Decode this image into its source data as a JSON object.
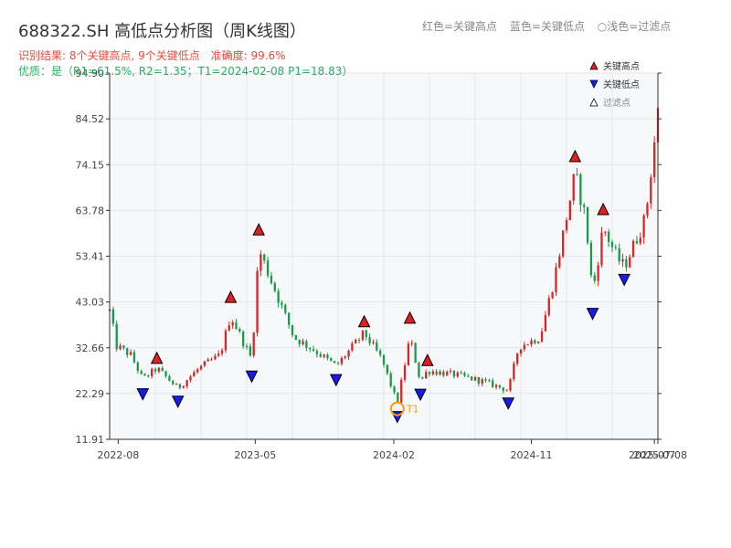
{
  "header": {
    "title": "688322.SH 高低点分析图（周K线图）",
    "caption_red": "红色=关键高点",
    "caption_blue": "蓝色=关键低点",
    "caption_light": "○浅色=过滤点",
    "result_text": "识别结果: 8个关键高点, 9个关键低点",
    "accuracy_text": "准确度: 99.6%",
    "quality_text": "优质：是（R1=61.5%, R2=1.35；T1=2024-02-08 P1=18.83）"
  },
  "legend": {
    "high_label": "关键高点",
    "low_label": "关键低点",
    "filtered_label": "过滤点",
    "placement": "top-right"
  },
  "colors": {
    "up": "#d62728",
    "down": "#1a9a4a",
    "high_marker": "#e02020",
    "low_marker": "#1a1aee",
    "t1_marker": "#f39c12",
    "grid": "#e3e6ea",
    "plot_bg": "#f7f8fa"
  },
  "chart_data": {
    "type": "candlestick",
    "xlabel": "",
    "ylabel": "",
    "grid": true,
    "ylim": [
      11.91,
      94.9
    ],
    "y_ticks": [
      "94.90",
      "84.52",
      "74.15",
      "63.78",
      "53.41",
      "43.03",
      "32.66",
      "22.29",
      "11.91"
    ],
    "x_range": [
      "2022-07-15",
      "2025-07-11"
    ],
    "x_ticks": [
      {
        "date": "2022-08-01",
        "label": "2022-08"
      },
      {
        "date": "2023-05-01",
        "label": "2023-05"
      },
      {
        "date": "2024-02-01",
        "label": "2024-02"
      },
      {
        "date": "2024-11-01",
        "label": "2024-11"
      },
      {
        "date": "2025-07-04",
        "label": "2025-07"
      },
      {
        "date": "2025-07-11",
        "label": "2025-07-08"
      }
    ],
    "key_points": {
      "high": [
        {
          "date": "2022-10-17",
          "price": 28.5
        },
        {
          "date": "2023-03-13",
          "price": 42.3
        },
        {
          "date": "2023-05-08",
          "price": 57.6
        },
        {
          "date": "2023-12-04",
          "price": 36.8
        },
        {
          "date": "2024-03-04",
          "price": 37.6
        },
        {
          "date": "2024-04-08",
          "price": 28.0
        },
        {
          "date": "2025-01-27",
          "price": 74.2
        },
        {
          "date": "2025-03-24",
          "price": 62.2
        }
      ],
      "low": [
        {
          "date": "2022-09-19",
          "price": 24.0
        },
        {
          "date": "2022-11-28",
          "price": 22.3
        },
        {
          "date": "2023-04-24",
          "price": 28.0
        },
        {
          "date": "2023-10-09",
          "price": 27.2
        },
        {
          "date": "2024-02-08",
          "price": 18.83
        },
        {
          "date": "2024-03-25",
          "price": 23.9
        },
        {
          "date": "2024-09-16",
          "price": 21.9
        },
        {
          "date": "2025-03-03",
          "price": 42.2
        },
        {
          "date": "2025-05-05",
          "price": 49.9
        }
      ],
      "t1": {
        "date": "2024-02-08",
        "price": 18.83,
        "label": "T1"
      }
    },
    "anchors": [
      [
        "2022-07-15",
        41.0
      ],
      [
        "2022-07-29",
        33.0
      ],
      [
        "2022-08-26",
        31.0
      ],
      [
        "2022-09-19",
        25.5
      ],
      [
        "2022-10-17",
        28.0
      ],
      [
        "2022-11-28",
        23.5
      ],
      [
        "2023-01-09",
        28.0
      ],
      [
        "2023-02-20",
        31.0
      ],
      [
        "2023-03-13",
        40.0
      ],
      [
        "2023-04-24",
        30.0
      ],
      [
        "2023-05-08",
        55.0
      ],
      [
        "2023-06-12",
        45.0
      ],
      [
        "2023-07-17",
        35.0
      ],
      [
        "2023-08-28",
        32.0
      ],
      [
        "2023-10-09",
        28.5
      ],
      [
        "2023-12-04",
        36.0
      ],
      [
        "2024-01-08",
        30.0
      ],
      [
        "2024-02-08",
        20.0
      ],
      [
        "2024-03-04",
        35.0
      ],
      [
        "2024-03-25",
        25.0
      ],
      [
        "2024-04-08",
        27.5
      ],
      [
        "2024-06-03",
        26.5
      ],
      [
        "2024-07-29",
        25.0
      ],
      [
        "2024-09-16",
        23.0
      ],
      [
        "2024-10-07",
        33.0
      ],
      [
        "2024-11-18",
        35.0
      ],
      [
        "2024-12-16",
        48.0
      ],
      [
        "2025-01-27",
        72.0
      ],
      [
        "2025-02-17",
        62.0
      ],
      [
        "2025-03-03",
        45.0
      ],
      [
        "2025-03-24",
        60.0
      ],
      [
        "2025-04-21",
        53.0
      ],
      [
        "2025-05-05",
        51.0
      ],
      [
        "2025-06-16",
        62.0
      ],
      [
        "2025-07-11",
        86.0
      ]
    ]
  }
}
